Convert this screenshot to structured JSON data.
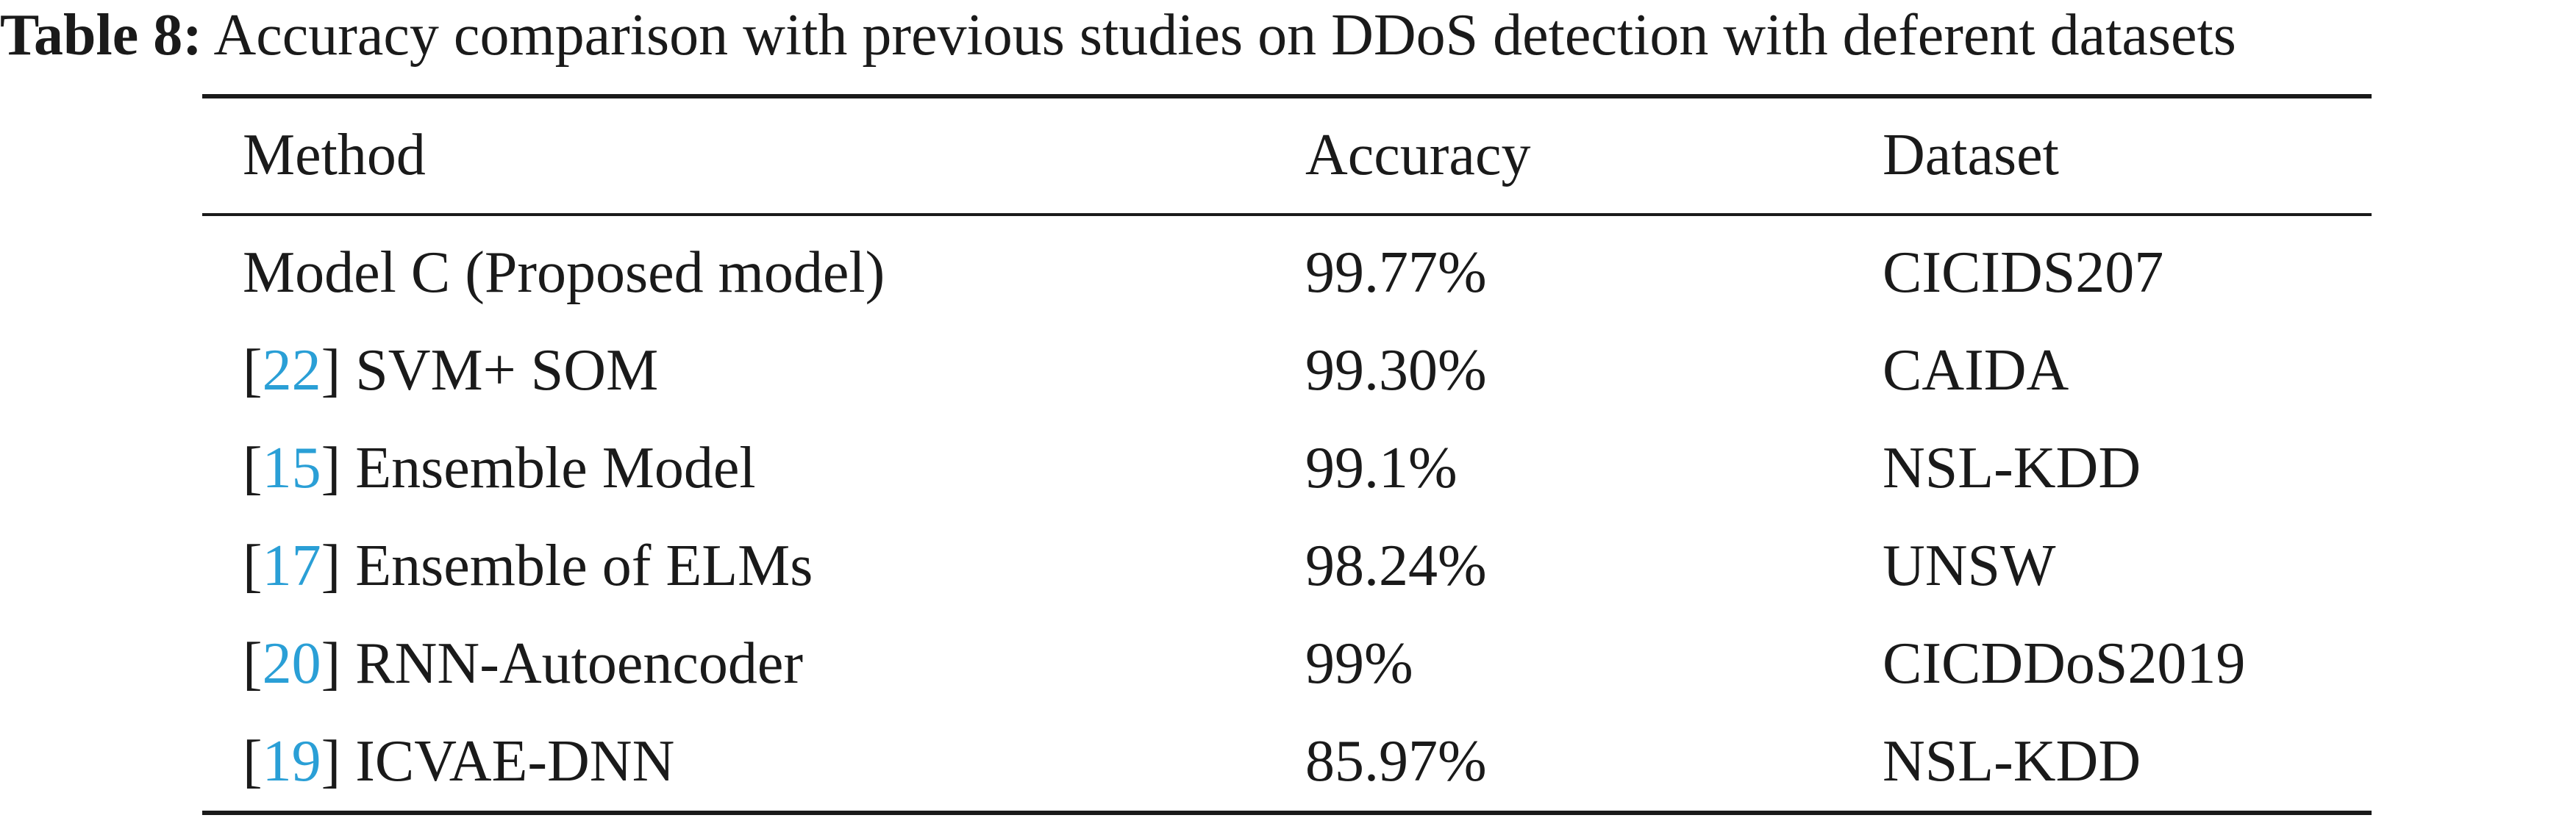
{
  "caption": {
    "label": "Table 8:",
    "text": "Accuracy comparison with previous studies on DDoS detection with deferent datasets"
  },
  "table": {
    "headers": [
      "Method",
      "Accuracy",
      "Dataset"
    ],
    "rows": [
      {
        "ref": "",
        "method": "Model C (Proposed model)",
        "accuracy": "99.77%",
        "dataset": "CICIDS207"
      },
      {
        "ref": "22",
        "method": "SVM+ SOM",
        "accuracy": "99.30%",
        "dataset": "CAIDA"
      },
      {
        "ref": "15",
        "method": "Ensemble Model",
        "accuracy": "99.1%",
        "dataset": "NSL-KDD"
      },
      {
        "ref": "17",
        "method": "Ensemble of ELMs",
        "accuracy": "98.24%",
        "dataset": "UNSW"
      },
      {
        "ref": "20",
        "method": "RNN-Autoencoder",
        "accuracy": "99%",
        "dataset": "CICDDoS2019"
      },
      {
        "ref": "19",
        "method": "ICVAE-DNN",
        "accuracy": "85.97%",
        "dataset": "NSL-KDD"
      }
    ]
  },
  "colors": {
    "text": "#1a1a1a",
    "citation_link": "#2a9fd6"
  }
}
